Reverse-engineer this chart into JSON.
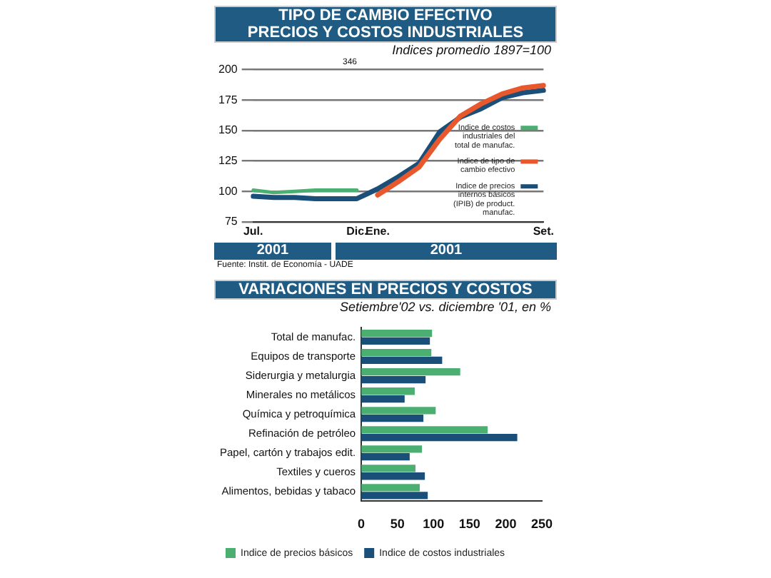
{
  "chart_data": [
    {
      "type": "line",
      "title": "TIPO DE CAMBIO EFECTIVO\nPRECIOS Y COSTOS INDUSTRIALES",
      "subtitle": "Indices promedio 1897=100",
      "categories": [
        "Jul.",
        null,
        null,
        null,
        null,
        "Dic.",
        "Ene.",
        null,
        null,
        null,
        null,
        null,
        null,
        null,
        "Set."
      ],
      "series": [
        {
          "name": "Indice de costos industriales del total de manufac.",
          "color": "#4caf72",
          "values": [
            101,
            99,
            100,
            101,
            101,
            101,
            null,
            null,
            null,
            null,
            null,
            null,
            null,
            null,
            null
          ]
        },
        {
          "name": "Indice de tipo de cambio efectivo",
          "color": "#e8582c",
          "values": [
            null,
            null,
            null,
            null,
            null,
            null,
            97,
            108,
            120,
            143,
            162,
            172,
            180,
            185,
            187
          ]
        },
        {
          "name": "Indice de precios internos básicos (IPIB) de product. manufac.",
          "color": "#1a4f7a",
          "values": [
            96,
            95,
            95,
            94,
            94,
            94,
            102,
            112,
            123,
            149,
            161,
            168,
            177,
            181,
            183
          ]
        }
      ],
      "ylim": [
        75,
        200
      ],
      "yticks": [
        75,
        100,
        125,
        150,
        175,
        200
      ],
      "grid": "y",
      "legend": "bottom right",
      "marker": "none",
      "line_style": "solid",
      "annotations": [
        "346",
        "2001",
        "2001",
        "Fuente: Instit. de Economía - UADE"
      ]
    },
    {
      "type": "bar",
      "orientation": "horizontal",
      "title": "VARIACIONES EN PRECIOS Y COSTOS",
      "subtitle": "Setiembre'02 vs. diciembre '01, en %",
      "categories": [
        "Total de manufac.",
        "Equipos de transporte",
        "Siderurgia y metalurgia",
        "Minerales no metálicos",
        "Química y petroquímica",
        "Refinación de petróleo",
        "Papel, cartón y trabajos edit.",
        "Textiles y cueros",
        "Alimentos, bebidas y tabaco"
      ],
      "series": [
        {
          "name": "Indice de precios básicos",
          "color": "#4caf72",
          "values": [
            98,
            97,
            137,
            74,
            103,
            175,
            84,
            75,
            81
          ]
        },
        {
          "name": "Indice de costos industriales",
          "color": "#1a4f7a",
          "values": [
            95,
            112,
            89,
            60,
            86,
            216,
            67,
            88,
            92
          ]
        }
      ],
      "xlim": [
        0,
        250
      ],
      "xticks": [
        0,
        50,
        100,
        150,
        200,
        250
      ],
      "grid": false,
      "legend": "bottom"
    }
  ]
}
